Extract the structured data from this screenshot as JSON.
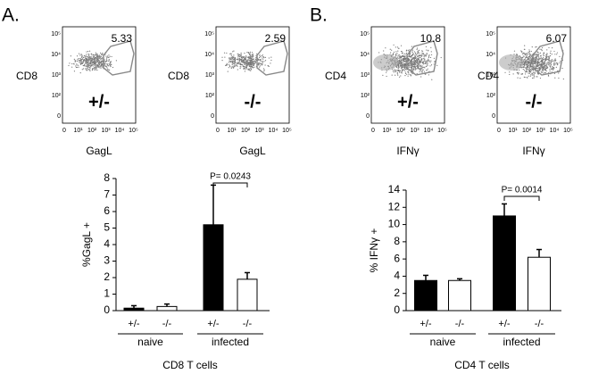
{
  "panel_labels": [
    "A.",
    "B."
  ],
  "flow_plots": [
    {
      "y_label": "CD8",
      "x_label": "GagL",
      "genotype": "+/-",
      "gate_percent": 5.33
    },
    {
      "y_label": "CD8",
      "x_label": "GagL",
      "genotype": "-/-",
      "gate_percent": 2.59
    },
    {
      "y_label": "CD4",
      "x_label": "IFNγ",
      "genotype": "+/-",
      "gate_percent": 10.8
    },
    {
      "y_label": "CD4",
      "x_label": "IFNγ",
      "genotype": "-/-",
      "gate_percent": 6.07
    }
  ],
  "flow_x_ticks": [
    "0",
    "10¹",
    "10²",
    "10³",
    "10⁴",
    "10⁵"
  ],
  "flow_y_ticks": [
    "10⁵",
    "10⁴",
    "10³",
    "10²",
    "0"
  ],
  "chart_data": [
    {
      "type": "bar",
      "y_label": "%GagL +",
      "x_label": "CD8 T cells",
      "categories": [
        "+/-",
        "-/-",
        "+/-",
        "-/-"
      ],
      "group_labels": [
        "naive",
        "infected"
      ],
      "values": [
        0.15,
        0.25,
        5.2,
        1.9
      ],
      "errors": [
        0.15,
        0.15,
        2.4,
        0.4
      ],
      "colors": [
        "#000000",
        "#ffffff",
        "#000000",
        "#ffffff"
      ],
      "annotation": "P= 0.0243",
      "ylim": [
        0,
        8
      ],
      "yticks": [
        0,
        1,
        2,
        3,
        4,
        5,
        6,
        7,
        8
      ]
    },
    {
      "type": "bar",
      "y_label": "% IFNγ +",
      "x_label": "CD4 T cells",
      "categories": [
        "+/-",
        "-/-",
        "+/-",
        "-/-"
      ],
      "group_labels": [
        "naive",
        "infected"
      ],
      "values": [
        3.5,
        3.5,
        11,
        6.2
      ],
      "errors": [
        0.6,
        0.2,
        1.4,
        0.9
      ],
      "colors": [
        "#000000",
        "#ffffff",
        "#000000",
        "#ffffff"
      ],
      "annotation": "P= 0.0014",
      "ylim": [
        0,
        14
      ],
      "yticks": [
        0,
        2,
        4,
        6,
        8,
        10,
        12,
        14
      ]
    }
  ]
}
